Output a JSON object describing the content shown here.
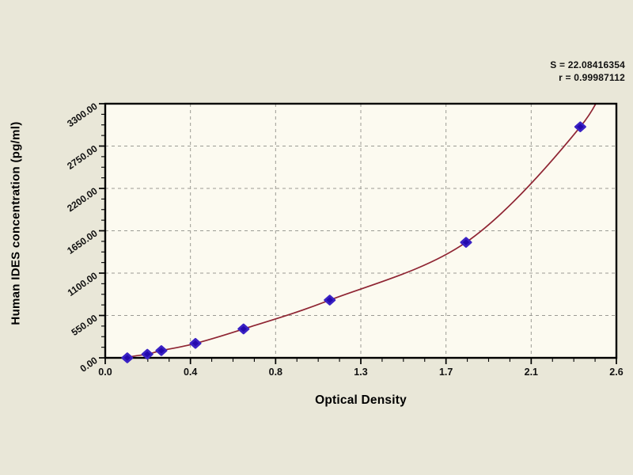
{
  "window": {
    "background_color": "#e9e7d8",
    "plot_background_color": "#fcfaf0"
  },
  "annotation": {
    "s_line": "S = 22.08416354",
    "r_line": "r = 0.99987112"
  },
  "colors": {
    "curve": "#8f2533",
    "marker_fill": "#2409ad",
    "marker_edge": "#3a22c4",
    "grid": "#9b9b94",
    "axis": "#000000",
    "text": "#111111"
  },
  "chart_data": {
    "type": "scatter",
    "title": "",
    "xlabel": "Optical Density",
    "ylabel": "Human IDES concentration (pg/ml)",
    "xlim": [
      0,
      2.55
    ],
    "ylim": [
      0,
      3300
    ],
    "grid": "dashed at major ticks",
    "legend": null,
    "x_major_ticks": [
      0,
      0.425,
      0.85,
      1.275,
      1.7,
      2.125,
      2.55
    ],
    "x_major_tick_labels": [
      "0.0",
      "0.4",
      "0.8",
      "1.3",
      "1.7",
      "2.1",
      "2.6"
    ],
    "x_minor_divisions": 4,
    "y_major_ticks": [
      0,
      550,
      1100,
      1650,
      2200,
      2750,
      3300
    ],
    "y_major_tick_labels": [
      "0.00",
      "550.00",
      "1100.00",
      "1650.00",
      "2200.00",
      "2750.00",
      "3300.00"
    ],
    "y_minor_divisions": 4,
    "series": [
      {
        "name": "standard-points",
        "type": "scatter",
        "marker": "diamond",
        "points": [
          [
            0.11,
            0
          ],
          [
            0.21,
            46.9
          ],
          [
            0.28,
            93.8
          ],
          [
            0.45,
            187.5
          ],
          [
            0.69,
            375
          ],
          [
            1.12,
            750
          ],
          [
            1.8,
            1500
          ],
          [
            2.37,
            3000
          ]
        ]
      },
      {
        "name": "fitted-curve",
        "type": "line",
        "points_from": "standard-points"
      }
    ],
    "fit_stats": {
      "S": "22.08416354",
      "r": "0.99987112"
    }
  }
}
